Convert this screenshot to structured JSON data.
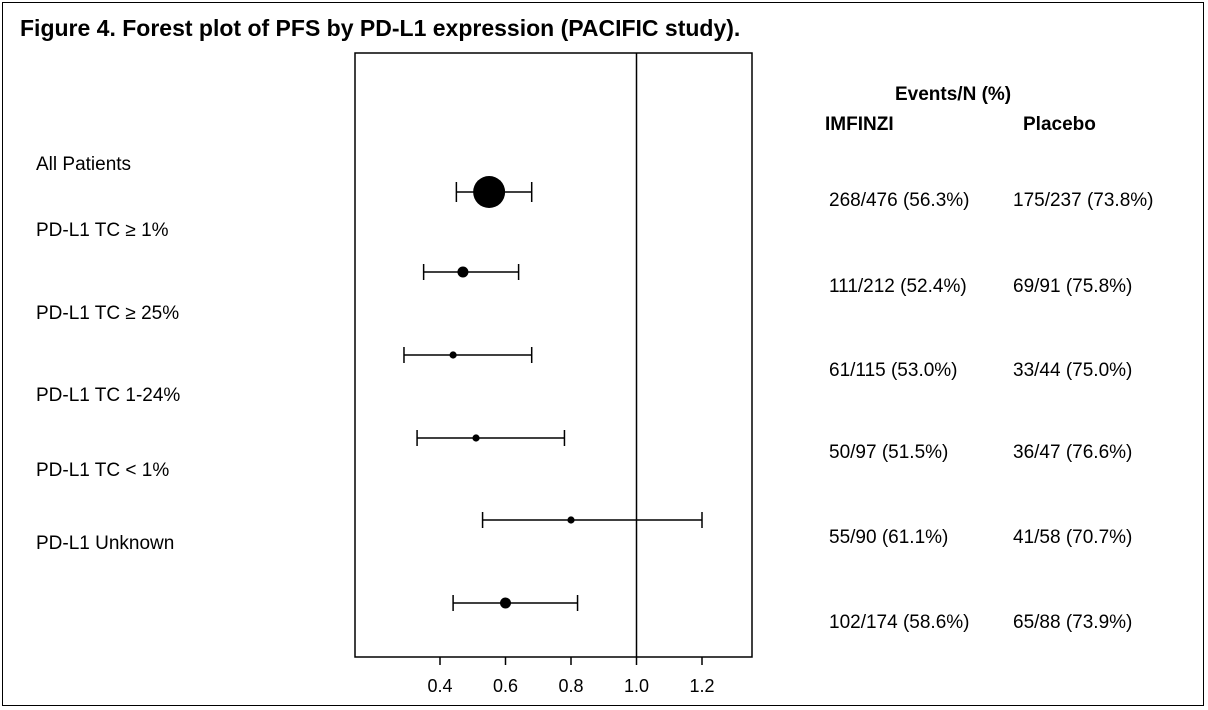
{
  "title": "Figure 4. Forest plot of PFS by PD-L1 expression (PACIFIC study).",
  "table_header": {
    "group": "Events/N (%)",
    "col1": "IMFINZI",
    "col2": "Placebo"
  },
  "rows": [
    {
      "label": "All Patients",
      "imfinzi": "268/476 (56.3%)",
      "placebo": "175/237 (73.8%)"
    },
    {
      "label": "PD-L1 TC ≥ 1%",
      "imfinzi": "111/212 (52.4%)",
      "placebo": "69/91 (75.8%)"
    },
    {
      "label": "PD-L1 TC ≥ 25%",
      "imfinzi": "61/115 (53.0%)",
      "placebo": "33/44 (75.0%)"
    },
    {
      "label": "PD-L1 TC 1-24%",
      "imfinzi": "50/97 (51.5%)",
      "placebo": "36/47 (76.6%)"
    },
    {
      "label": "PD-L1 TC < 1%",
      "imfinzi": "55/90 (61.1%)",
      "placebo": "41/58 (70.7%)"
    },
    {
      "label": "PD-L1 Unknown",
      "imfinzi": "102/174 (58.6%)",
      "placebo": "65/88 (73.9%)"
    }
  ],
  "chart_data": {
    "type": "scatter",
    "subtype": "forest",
    "xlim": [
      0.1,
      1.35
    ],
    "xticks": [
      0.4,
      0.6,
      0.8,
      1.0,
      1.2
    ],
    "xtick_labels": [
      "0.4",
      "0.6",
      "0.8",
      "1.0",
      "1.2"
    ],
    "reference_line": 1.0,
    "estimates": [
      {
        "hr": 0.55,
        "lo": 0.45,
        "hi": 0.68,
        "marker": "large"
      },
      {
        "hr": 0.47,
        "lo": 0.35,
        "hi": 0.64,
        "marker": "medium"
      },
      {
        "hr": 0.44,
        "lo": 0.29,
        "hi": 0.68,
        "marker": "small"
      },
      {
        "hr": 0.51,
        "lo": 0.33,
        "hi": 0.78,
        "marker": "small"
      },
      {
        "hr": 0.8,
        "lo": 0.53,
        "hi": 1.2,
        "marker": "small"
      },
      {
        "hr": 0.6,
        "lo": 0.44,
        "hi": 0.82,
        "marker": "medium"
      }
    ]
  },
  "colors": {
    "ink": "#000000",
    "background": "#ffffff"
  }
}
